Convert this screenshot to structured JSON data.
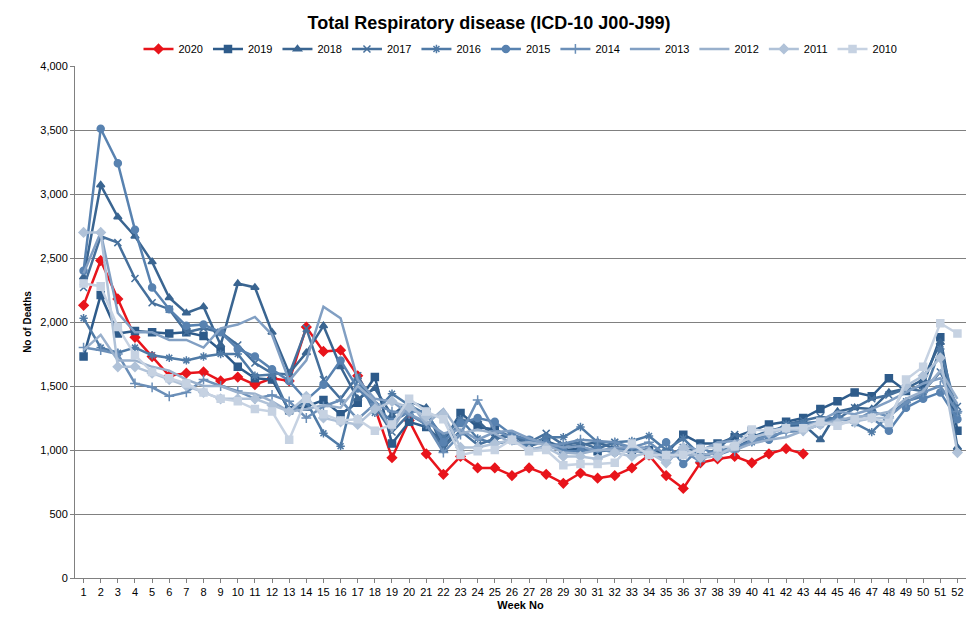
{
  "chart_data": {
    "type": "line",
    "title": "Total Respiratory disease (ICD-10 J00-J99)",
    "x_label": "Week No",
    "y_label": "No of Deaths",
    "categories": [
      1,
      2,
      3,
      4,
      5,
      6,
      7,
      8,
      9,
      10,
      11,
      12,
      13,
      14,
      15,
      16,
      17,
      18,
      19,
      20,
      21,
      22,
      23,
      24,
      25,
      26,
      27,
      28,
      29,
      30,
      31,
      32,
      33,
      34,
      35,
      36,
      37,
      38,
      39,
      40,
      41,
      42,
      43,
      44,
      45,
      46,
      47,
      48,
      49,
      50,
      51,
      52
    ],
    "ylim": [
      0,
      4000
    ],
    "yticks": [
      0,
      500,
      {
        "value": 1000,
        "label": "1,000"
      },
      {
        "value": 1500,
        "label": "1,500"
      },
      {
        "value": 2000,
        "label": "2,000"
      },
      {
        "value": 2500,
        "label": "2,500"
      },
      {
        "value": 3000,
        "label": "3,000"
      },
      {
        "value": 3500,
        "label": "3,500"
      },
      {
        "value": 4000,
        "label": "4,000"
      }
    ],
    "grid": true,
    "legend": "top",
    "series": [
      {
        "name": "2020",
        "color": "#e8141b",
        "marker": "diamond",
        "values": [
          2130,
          2480,
          2180,
          1880,
          1730,
          1580,
          1600,
          1610,
          1540,
          1570,
          1510,
          1560,
          1540,
          1960,
          1770,
          1780,
          1580,
          1330,
          940,
          1230,
          970,
          810,
          950,
          860,
          860,
          800,
          860,
          810,
          740,
          820,
          780,
          800,
          860,
          960,
          800,
          700,
          900,
          930,
          950,
          900,
          970,
          1010,
          970,
          null,
          null,
          null,
          null,
          null,
          null,
          null,
          null,
          null
        ]
      },
      {
        "name": "2019",
        "color": "#2e5b8a",
        "marker": "square",
        "values": [
          1730,
          2210,
          1910,
          1930,
          1920,
          1910,
          1920,
          1890,
          1780,
          1650,
          1560,
          1550,
          1310,
          1340,
          1390,
          1280,
          1370,
          1570,
          1050,
          1220,
          1180,
          1060,
          1290,
          1180,
          1160,
          1100,
          1070,
          1060,
          1000,
          1010,
          990,
          1000,
          1000,
          1000,
          970,
          1120,
          1050,
          1050,
          1100,
          1150,
          1200,
          1220,
          1250,
          1320,
          1380,
          1450,
          1420,
          1560,
          1460,
          1510,
          1880,
          1150
        ]
      },
      {
        "name": "2018",
        "color": "#3a6591",
        "marker": "triangle",
        "values": [
          2350,
          3070,
          2820,
          2670,
          2470,
          2190,
          2070,
          2120,
          1820,
          2300,
          2270,
          1920,
          1600,
          1760,
          1970,
          1650,
          1400,
          1480,
          1270,
          1380,
          1330,
          1000,
          1230,
          1230,
          1100,
          1120,
          1030,
          1070,
          1020,
          1040,
          1060,
          1010,
          1010,
          960,
          960,
          1000,
          1000,
          1040,
          1000,
          1100,
          1150,
          1180,
          1200,
          1080,
          1300,
          1330,
          1320,
          1450,
          1480,
          1550,
          1840,
          1020
        ]
      },
      {
        "name": "2017",
        "color": "#46709c",
        "marker": "x",
        "values": [
          2270,
          2670,
          2620,
          2340,
          2150,
          2100,
          1920,
          1950,
          1920,
          1820,
          1680,
          1600,
          1590,
          1950,
          1550,
          1400,
          1580,
          1340,
          1140,
          1280,
          1200,
          1020,
          1150,
          1040,
          1090,
          1110,
          1060,
          1130,
          1040,
          1060,
          1010,
          1060,
          1010,
          980,
          940,
          1020,
          940,
          1010,
          1120,
          1080,
          1120,
          1200,
          1230,
          1260,
          1240,
          1330,
          1400,
          1430,
          1480,
          1460,
          1610,
          1340
        ]
      },
      {
        "name": "2016",
        "color": "#4f7aa6",
        "marker": "star",
        "values": [
          2030,
          1800,
          1760,
          1800,
          1740,
          1720,
          1700,
          1730,
          1750,
          1750,
          1580,
          1590,
          1300,
          1380,
          1130,
          1030,
          1560,
          1290,
          1440,
          1350,
          1280,
          1100,
          1240,
          1090,
          1050,
          1070,
          1040,
          1100,
          1100,
          1180,
          1060,
          1060,
          1070,
          1110,
          1000,
          1090,
          960,
          980,
          1030,
          1060,
          1120,
          1200,
          1210,
          1220,
          1260,
          1210,
          1140,
          1270,
          1380,
          1420,
          1790,
          1290
        ]
      },
      {
        "name": "2015",
        "color": "#5882b0",
        "marker": "circle",
        "values": [
          2400,
          3510,
          3240,
          2720,
          2270,
          2100,
          1970,
          1980,
          1920,
          1790,
          1730,
          1630,
          1540,
          1390,
          1510,
          1700,
          1480,
          1350,
          1220,
          1300,
          1300,
          1060,
          1210,
          1250,
          1220,
          1120,
          1080,
          1050,
          990,
          990,
          1010,
          980,
          1030,
          960,
          1060,
          890,
          1020,
          960,
          1010,
          1070,
          1080,
          1160,
          1180,
          1200,
          1250,
          1230,
          1250,
          1150,
          1330,
          1400,
          1450,
          1240
        ]
      },
      {
        "name": "2014",
        "color": "#6b8fb8",
        "marker": "plus",
        "values": [
          1800,
          1780,
          1750,
          1520,
          1490,
          1420,
          1450,
          1550,
          1500,
          1460,
          1400,
          1430,
          1380,
          1250,
          1340,
          1390,
          1240,
          1360,
          1300,
          1280,
          1200,
          980,
          1120,
          1390,
          1150,
          1100,
          1000,
          1030,
          1050,
          1080,
          1070,
          1060,
          1020,
          1060,
          960,
          990,
          910,
          1010,
          990,
          1070,
          1110,
          1140,
          1150,
          1200,
          1240,
          1230,
          1300,
          1260,
          1370,
          1450,
          1500,
          1300
        ]
      },
      {
        "name": "2013",
        "color": "#819fc3",
        "marker": "none",
        "values": [
          2380,
          2700,
          2070,
          1920,
          1920,
          1860,
          1860,
          1800,
          1950,
          1980,
          2040,
          1900,
          1540,
          1700,
          2120,
          2030,
          1550,
          1400,
          1380,
          1280,
          1220,
          1130,
          1160,
          1080,
          1140,
          1150,
          1090,
          1050,
          1020,
          1030,
          990,
          1020,
          1020,
          1020,
          890,
          1040,
          990,
          1060,
          1070,
          1090,
          1140,
          1170,
          1180,
          1230,
          1300,
          1280,
          1320,
          1380,
          1450,
          1520,
          1560,
          1360
        ]
      },
      {
        "name": "2012",
        "color": "#99b0cc",
        "marker": "none",
        "values": [
          1780,
          1900,
          1700,
          1700,
          1650,
          1620,
          1550,
          1500,
          1500,
          1450,
          1440,
          1380,
          1300,
          1320,
          1350,
          1330,
          1500,
          1380,
          1150,
          1380,
          1200,
          1320,
          1130,
          1160,
          1130,
          1050,
          1060,
          1040,
          980,
          970,
          1000,
          1000,
          980,
          1000,
          940,
          960,
          960,
          980,
          1000,
          1050,
          1080,
          1100,
          1150,
          1200,
          1230,
          1260,
          1270,
          1300,
          1400,
          1460,
          1620,
          1400
        ]
      },
      {
        "name": "2011",
        "color": "#b0c2d8",
        "marker": "diamond",
        "values": [
          2700,
          2700,
          1650,
          1650,
          1600,
          1550,
          1500,
          1450,
          1400,
          1400,
          1400,
          1350,
          1300,
          1420,
          1250,
          1220,
          1200,
          1320,
          1380,
          1330,
          1260,
          1280,
          1020,
          1020,
          1050,
          1080,
          1000,
          1020,
          950,
          950,
          930,
          980,
          950,
          980,
          900,
          1020,
          940,
          950,
          1040,
          1100,
          1130,
          1170,
          1150,
          1200,
          1210,
          1220,
          1250,
          1250,
          1500,
          1580,
          1720,
          980
        ]
      },
      {
        "name": "2010",
        "color": "#c6d2e2",
        "marker": "square",
        "values": [
          2300,
          2280,
          1960,
          1740,
          1610,
          1560,
          1520,
          1450,
          1400,
          1380,
          1320,
          1300,
          1080,
          1400,
          1280,
          1230,
          1240,
          1150,
          1200,
          1400,
          1300,
          1240,
          960,
          990,
          1000,
          1080,
          990,
          1000,
          880,
          890,
          890,
          900,
          1050,
          960,
          960,
          960,
          1010,
          1020,
          1030,
          1160,
          1150,
          1170,
          1170,
          1220,
          1190,
          1240,
          1250,
          1210,
          1550,
          1650,
          1990,
          1910
        ]
      }
    ]
  }
}
